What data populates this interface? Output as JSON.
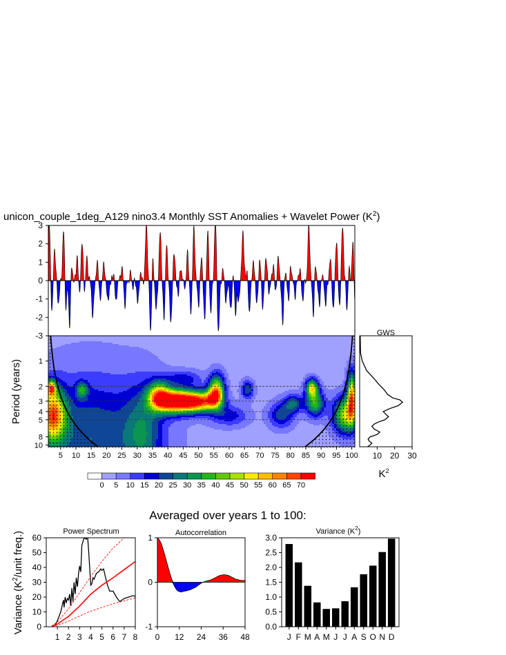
{
  "title": {
    "text": "unicon_couple_1deg_A129 nino3.4 Monthly SST Anomalies + Wavelet Power (K",
    "sup": "2",
    "tail": ")"
  },
  "subtitle": "Averaged over years 1 to 100:",
  "chart_data": [
    {
      "id": "anomaly",
      "type": "area",
      "ylim": [
        -3,
        3
      ],
      "yticks": [
        3,
        2,
        1,
        0,
        -1,
        -2,
        -3
      ],
      "x_range_years": [
        1,
        101
      ],
      "colors": {
        "positive": "#ff0000",
        "negative": "#0000ff"
      },
      "note_events_positive": [
        [
          1.3,
          3.2
        ],
        [
          3,
          1.8
        ],
        [
          6,
          2.8
        ],
        [
          8.5,
          1.2
        ],
        [
          10.5,
          1.6
        ],
        [
          12,
          2.0
        ],
        [
          13.5,
          1.5
        ],
        [
          17,
          0.9
        ],
        [
          19,
          0.9
        ],
        [
          22.5,
          0.6
        ],
        [
          25,
          0.7
        ],
        [
          28,
          0.5
        ],
        [
          31,
          0.4
        ],
        [
          33,
          3.1
        ],
        [
          35,
          1.3
        ],
        [
          37.5,
          2.6
        ],
        [
          39.5,
          2.1
        ],
        [
          42,
          1.5
        ],
        [
          44,
          1.0
        ],
        [
          46.3,
          2.4
        ],
        [
          48.5,
          2.8
        ],
        [
          51,
          1.2
        ],
        [
          53,
          2.6
        ],
        [
          55.5,
          3.2
        ],
        [
          58,
          0.5
        ],
        [
          61.5,
          0.6
        ],
        [
          64.5,
          2.7
        ],
        [
          66,
          0.9
        ],
        [
          68,
          1.0
        ],
        [
          70,
          1.0
        ],
        [
          72,
          1.3
        ],
        [
          74.5,
          1.1
        ],
        [
          76,
          1.2
        ],
        [
          78,
          0.7
        ],
        [
          80,
          1.1
        ],
        [
          83,
          0.6
        ],
        [
          86,
          3.0
        ],
        [
          88,
          1.1
        ],
        [
          90,
          0.5
        ],
        [
          93,
          1.1
        ],
        [
          95,
          2.2
        ],
        [
          97,
          3.0
        ],
        [
          99,
          0.9
        ],
        [
          100.5,
          3.2
        ]
      ],
      "note_events_negative": [
        [
          2.2,
          -1.8
        ],
        [
          4.3,
          -1.2
        ],
        [
          6.7,
          -1.6
        ],
        [
          8,
          -2.7
        ],
        [
          11,
          -1.0
        ],
        [
          13,
          -0.8
        ],
        [
          15.5,
          -2.0
        ],
        [
          18,
          -1.1
        ],
        [
          20.5,
          -1.2
        ],
        [
          23,
          -1.4
        ],
        [
          26,
          -1.3
        ],
        [
          28.5,
          -0.5
        ],
        [
          30.2,
          -1.3
        ],
        [
          34.4,
          -2.9
        ],
        [
          36.2,
          -1.6
        ],
        [
          38.8,
          -2.3
        ],
        [
          41,
          -2.4
        ],
        [
          43.5,
          -1.1
        ],
        [
          46,
          -1.3
        ],
        [
          47.5,
          -1.7
        ],
        [
          50,
          -1.3
        ],
        [
          52,
          -2.2
        ],
        [
          54,
          -1.7
        ],
        [
          56.5,
          -2.9
        ],
        [
          59,
          -1.2
        ],
        [
          60.5,
          -1.7
        ],
        [
          62,
          -1.9
        ],
        [
          63,
          -1.2
        ],
        [
          66.5,
          -2.1
        ],
        [
          69,
          -1.3
        ],
        [
          71,
          -1.5
        ],
        [
          73,
          -0.6
        ],
        [
          75,
          -0.9
        ],
        [
          77.5,
          -2.6
        ],
        [
          79.5,
          -1.3
        ],
        [
          81.5,
          -0.8
        ],
        [
          84,
          -1.0
        ],
        [
          87.5,
          -2.1
        ],
        [
          89.5,
          -1.6
        ],
        [
          91.5,
          -1.3
        ],
        [
          94,
          -1.6
        ],
        [
          96,
          -1.3
        ],
        [
          98.5,
          -1.7
        ],
        [
          100.8,
          -2.2
        ]
      ]
    },
    {
      "id": "wavelet",
      "type": "heatmap",
      "ylabel": "Period (years)",
      "yticks": [
        1,
        2,
        3,
        4,
        5,
        8,
        10
      ],
      "xticks": [
        5,
        10,
        15,
        20,
        25,
        30,
        35,
        40,
        45,
        50,
        55,
        60,
        65,
        70,
        75,
        80,
        85,
        90,
        95,
        100
      ],
      "x_range_years": [
        1,
        101
      ],
      "y_range_periods": [
        0.5,
        10.5
      ],
      "dashed_periods": [
        2,
        3,
        4,
        5
      ],
      "blobs": [
        {
          "x": 42,
          "p": 3.0,
          "sx": 6,
          "sp": 0.45,
          "v": 72
        },
        {
          "x": 50,
          "p": 3.05,
          "sx": 6,
          "sp": 0.4,
          "v": 62
        },
        {
          "x": 37,
          "p": 2.55,
          "sx": 3.5,
          "sp": 0.55,
          "v": 40
        },
        {
          "x": 56,
          "p": 2.2,
          "sx": 2.5,
          "sp": 0.6,
          "v": 45
        },
        {
          "x": 55,
          "p": 2.7,
          "sx": 2.5,
          "sp": 0.4,
          "v": 25
        },
        {
          "x": 2.5,
          "p": 4.4,
          "sx": 4,
          "sp": 1.0,
          "v": 55
        },
        {
          "x": 2,
          "p": 2.1,
          "sx": 1.5,
          "sp": 0.3,
          "v": 45
        },
        {
          "x": 12,
          "p": 2.2,
          "sx": 1.8,
          "sp": 0.3,
          "v": 25
        },
        {
          "x": 15,
          "p": 8.5,
          "sx": 20,
          "sp": 2.5,
          "v": 22
        },
        {
          "x": 32,
          "p": 7.0,
          "sx": 6,
          "sp": 1.8,
          "v": 18
        },
        {
          "x": 87,
          "p": 2.1,
          "sx": 2,
          "sp": 0.35,
          "v": 45
        },
        {
          "x": 88,
          "p": 3.2,
          "sx": 3,
          "sp": 0.5,
          "v": 35
        },
        {
          "x": 98,
          "p": 4.4,
          "sx": 4,
          "sp": 0.7,
          "v": 45
        },
        {
          "x": 100,
          "p": 2.6,
          "sx": 1.5,
          "sp": 0.9,
          "v": 55
        },
        {
          "x": 66,
          "p": 2.2,
          "sx": 2,
          "sp": 0.35,
          "v": 22
        },
        {
          "x": 81,
          "p": 3.2,
          "sx": 3,
          "sp": 0.35,
          "v": 22
        },
        {
          "x": 77,
          "p": 4.4,
          "sx": 4,
          "sp": 0.5,
          "v": 20
        },
        {
          "x": 60,
          "p": 4.5,
          "sx": 6,
          "sp": 0.4,
          "v": 15
        },
        {
          "x": 45,
          "p": 1.6,
          "sx": 6,
          "sp": 0.3,
          "v": 14
        }
      ],
      "coi_bounds_years": [
        1,
        101
      ]
    },
    {
      "id": "gws",
      "type": "line",
      "title": "GWS",
      "xlabel": "K",
      "xlabel_sup": "2",
      "xticks": [
        10,
        20,
        30
      ],
      "xlim": [
        0,
        30
      ],
      "period": [
        0.5,
        0.8,
        1.0,
        1.3,
        1.6,
        1.9,
        2.2,
        2.5,
        2.75,
        2.9,
        3.1,
        3.4,
        3.7,
        4.0,
        4.3,
        4.6,
        5.0,
        5.3,
        5.6,
        6.0,
        6.5,
        7.0,
        7.5,
        8.0,
        8.5,
        9.0,
        9.5,
        10.0,
        10.5
      ],
      "power": [
        0.3,
        0.5,
        1.5,
        4.0,
        8.0,
        11.0,
        14.0,
        16.0,
        19.0,
        23.0,
        24.5,
        22.0,
        17.0,
        13.5,
        15.0,
        16.5,
        14.5,
        11.0,
        8.5,
        7.0,
        8.5,
        11.5,
        10.0,
        6.0,
        4.8,
        5.5,
        7.0,
        6.0,
        4.5
      ]
    },
    {
      "id": "colorbar",
      "type": "table",
      "labels": [
        "0",
        "5",
        "10",
        "15",
        "20",
        "25",
        "30",
        "35",
        "40",
        "45",
        "50",
        "55",
        "60",
        "65",
        "70"
      ],
      "colors": [
        "#ffffff",
        "#a0a0ff",
        "#7878ff",
        "#3c3cff",
        "#0000d2",
        "#0f4696",
        "#0a7878",
        "#0a9650",
        "#23b41e",
        "#64c80a",
        "#aae100",
        "#ffeb00",
        "#ffbe00",
        "#ff8200",
        "#ff4600",
        "#ff0000"
      ]
    },
    {
      "id": "power_spectrum",
      "type": "line",
      "title": "Power Spectrum",
      "ylabel": "Variance (K",
      "ylabel_sup": "2",
      "ylabel_tail": "/unit freq.)",
      "xticks": [
        1,
        2,
        3,
        4,
        5,
        6,
        7,
        8
      ],
      "yticks": [
        0,
        10,
        20,
        30,
        40,
        50,
        60
      ],
      "xlim": [
        0,
        8
      ],
      "ylim": [
        0,
        60
      ],
      "series": [
        {
          "style": "black",
          "x": [
            0.5,
            0.7,
            0.9,
            1.0,
            1.15,
            1.3,
            1.45,
            1.55,
            1.6,
            1.7,
            1.8,
            1.9,
            2.0,
            2.1,
            2.2,
            2.3,
            2.4,
            2.5,
            2.6,
            2.7,
            2.8,
            2.9,
            3.0,
            3.1,
            3.2,
            3.4,
            3.6,
            3.7,
            3.8,
            3.9,
            4.0,
            4.1,
            4.2,
            4.3,
            4.5,
            4.7,
            4.9,
            5.0,
            5.15,
            5.3,
            5.5,
            5.7,
            6.0,
            6.3,
            6.6,
            7.0,
            7.4,
            7.8,
            8.0
          ],
          "y": [
            0.3,
            0.8,
            2.5,
            4.0,
            7.0,
            10.0,
            15.0,
            18.0,
            13.0,
            20.0,
            16.0,
            19.0,
            18.0,
            22.0,
            14.0,
            26.0,
            17.0,
            30.0,
            22.0,
            33.0,
            27.0,
            36.0,
            41.0,
            37.0,
            55.0,
            60.0,
            59.0,
            62.0,
            52.0,
            40.0,
            28.0,
            29.0,
            33.0,
            32.0,
            36.0,
            37.0,
            39.0,
            38.0,
            39.0,
            34.0,
            28.0,
            24.0,
            24.0,
            20.0,
            17.0,
            19.0,
            20.0,
            21.0,
            20.5
          ]
        },
        {
          "style": "red-solid",
          "x": [
            0.5,
            1,
            2,
            3,
            4,
            5,
            6,
            7,
            8
          ],
          "y": [
            0.3,
            1.8,
            7.0,
            14.0,
            22.0,
            28.0,
            33.0,
            38.5,
            44.0
          ]
        },
        {
          "style": "red-dashed",
          "x": [
            0.5,
            1,
            2,
            3,
            4,
            5,
            6,
            7,
            8
          ],
          "y": [
            0.6,
            3.2,
            12.0,
            23.0,
            34.0,
            44.0,
            53.0,
            60.0,
            68.0
          ]
        },
        {
          "style": "red-dashed",
          "x": [
            0.5,
            1,
            2,
            3,
            4,
            5,
            6,
            7,
            8
          ],
          "y": [
            0.2,
            1.0,
            3.8,
            7.3,
            10.5,
            13.0,
            15.5,
            17.5,
            19.5
          ]
        }
      ]
    },
    {
      "id": "autocorrelation",
      "type": "area",
      "title": "Autocorrelation",
      "xticks": [
        0,
        12,
        24,
        36,
        48
      ],
      "yticks": [
        1,
        0,
        -1
      ],
      "xlim": [
        0,
        48
      ],
      "ylim": [
        -1,
        1
      ],
      "lags": [
        0,
        1,
        2,
        3,
        4,
        5,
        6,
        7,
        8,
        9,
        10,
        11,
        12,
        13,
        14,
        15,
        16,
        17,
        18,
        19,
        20,
        21,
        22,
        23,
        24,
        25,
        26,
        27,
        28,
        29,
        30,
        31,
        32,
        33,
        34,
        35,
        36,
        37,
        38,
        39,
        40,
        41,
        42,
        43,
        44,
        45,
        46,
        47,
        48
      ],
      "values": [
        1.0,
        0.96,
        0.88,
        0.76,
        0.62,
        0.47,
        0.32,
        0.18,
        0.05,
        -0.06,
        -0.14,
        -0.19,
        -0.21,
        -0.22,
        -0.21,
        -0.2,
        -0.19,
        -0.18,
        -0.17,
        -0.15,
        -0.13,
        -0.11,
        -0.08,
        -0.05,
        -0.02,
        0.0,
        0.02,
        0.03,
        0.04,
        0.05,
        0.07,
        0.09,
        0.11,
        0.13,
        0.15,
        0.16,
        0.17,
        0.17,
        0.16,
        0.15,
        0.13,
        0.11,
        0.09,
        0.07,
        0.06,
        0.05,
        0.04,
        0.04,
        0.04
      ],
      "colors": {
        "positive": "#ff0000",
        "negative": "#0000ff"
      }
    },
    {
      "id": "variance",
      "type": "bar",
      "title": "Variance (K",
      "title_sup": "2",
      "title_tail": ")",
      "categories": [
        "J",
        "F",
        "M",
        "A",
        "M",
        "J",
        "J",
        "A",
        "S",
        "O",
        "N",
        "D"
      ],
      "values": [
        2.79,
        2.17,
        1.38,
        0.82,
        0.6,
        0.62,
        0.86,
        1.33,
        1.77,
        2.06,
        2.52,
        2.97
      ],
      "yticks": [
        0.0,
        0.5,
        1.0,
        1.5,
        2.0,
        2.5,
        3.0
      ],
      "ytick_labels": [
        "0.0",
        "0.5",
        "1.0",
        "1.5",
        "2.0",
        "2.5",
        "3.0"
      ],
      "ylim": [
        0,
        3
      ]
    }
  ]
}
